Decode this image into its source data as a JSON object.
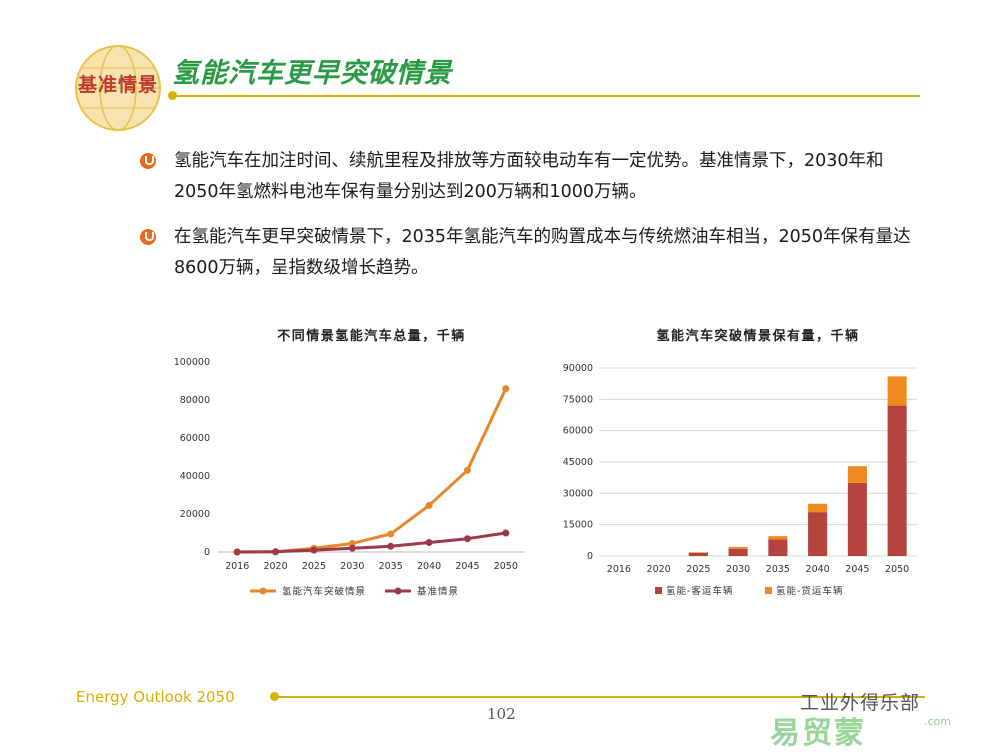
{
  "header": {
    "badge_text": "基准情景",
    "title": "氢能汽车更早突破情景",
    "colors": {
      "title": "#2a9a44",
      "rule": "#d8b100",
      "badge_text": "#c0392b"
    }
  },
  "bullets": [
    {
      "text": "氢能汽车在加注时间、续航里程及排放等方面较电动车有一定优势。基准情景下，2030年和2050年氢燃料电池车保有量分别达到200万辆和1000万辆。"
    },
    {
      "text": "在氢能汽车更早突破情景下，2035年氢能汽车的购置成本与传统燃油车相当，2050年保有量达8600万辆，呈指数级增长趋势。"
    }
  ],
  "chart_data": [
    {
      "type": "line",
      "title": "不同情景氢能汽车总量，千辆",
      "categories": [
        "2016",
        "2020",
        "2025",
        "2030",
        "2035",
        "2040",
        "2045",
        "2050"
      ],
      "ylim": [
        0,
        100000
      ],
      "yticks": [
        "0",
        "20000",
        "40000",
        "60000",
        "80000",
        "100000"
      ],
      "grid": false,
      "legend_position": "bottom",
      "series": [
        {
          "name": "氢能汽车突破情景",
          "color": "#e8862a",
          "values": [
            0,
            100,
            2000,
            4500,
            9500,
            24500,
            43000,
            86000
          ]
        },
        {
          "name": "基准情景",
          "color": "#9b3a48",
          "values": [
            0,
            100,
            1000,
            2000,
            3000,
            5000,
            7000,
            10000
          ]
        }
      ]
    },
    {
      "type": "bar",
      "stacked": true,
      "title": "氢能汽车突破情景保有量，千辆",
      "categories": [
        "2016",
        "2020",
        "2025",
        "2030",
        "2035",
        "2040",
        "2045",
        "2050"
      ],
      "ylim": [
        0,
        90000
      ],
      "yticks": [
        "0",
        "15000",
        "30000",
        "45000",
        "60000",
        "75000",
        "90000"
      ],
      "grid": true,
      "legend_position": "bottom",
      "series": [
        {
          "name": "氢能-客运车辆",
          "color": "#b5443f",
          "values": [
            0,
            0,
            1500,
            3500,
            8000,
            21000,
            35000,
            72000
          ]
        },
        {
          "name": "氢能-货运车辆",
          "color": "#f08a1e",
          "values": [
            0,
            0,
            300,
            800,
            1500,
            4000,
            8000,
            14000
          ]
        }
      ]
    }
  ],
  "footer": {
    "title": "Energy Outlook 2050",
    "page_number": "102",
    "watermark_text": "工业外得乐部",
    "watermark_logo": "易贸蒙",
    "watermark_url": ".com"
  }
}
